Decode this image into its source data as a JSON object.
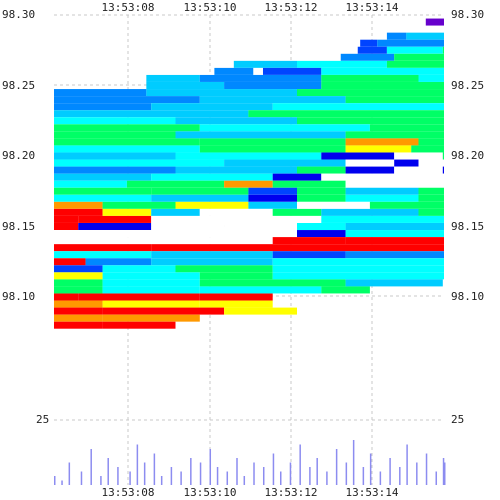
{
  "chart_data": {
    "type": "heatmap",
    "x_ticks": [
      "13:53:08",
      "13:53:10",
      "13:53:12",
      "13:53:14"
    ],
    "y_ticks": [
      "98.30",
      "98.25",
      "98.20",
      "98.15",
      "98.10"
    ],
    "y_lower_label": "25",
    "grid": true,
    "colors": {
      "grid": "#c8c8c8",
      "volume": "#8c8cf0",
      "palette": [
        "#ff0000",
        "#ff9900",
        "#ffff00",
        "#00ff66",
        "#00ffff",
        "#00ccff",
        "#0088ff",
        "#0044ff",
        "#0000ee",
        "#6600cc",
        "#ffffff"
      ]
    },
    "rows": [
      {
        "y": 98.295,
        "segments": [
          [
            13.533,
            13.553,
            9
          ]
        ]
      },
      {
        "y": 98.285,
        "segments": [
          [
            13.517,
            13.525,
            6
          ],
          [
            13.525,
            13.553,
            5
          ]
        ]
      },
      {
        "y": 98.28,
        "segments": [
          [
            13.506,
            13.513,
            7
          ],
          [
            13.513,
            13.553,
            6
          ]
        ]
      },
      {
        "y": 98.275,
        "segments": [
          [
            13.505,
            13.517,
            7
          ],
          [
            13.517,
            13.54,
            4
          ],
          [
            13.54,
            13.553,
            3
          ]
        ]
      },
      {
        "y": 98.27,
        "segments": [
          [
            13.498,
            13.52,
            6
          ],
          [
            13.52,
            13.553,
            3
          ]
        ]
      },
      {
        "y": 98.265,
        "segments": [
          [
            13.454,
            13.48,
            5
          ],
          [
            13.48,
            13.517,
            4
          ],
          [
            13.517,
            13.553,
            3
          ]
        ]
      },
      {
        "y": 98.26,
        "segments": [
          [
            13.446,
            13.462,
            6
          ],
          [
            13.466,
            13.49,
            7
          ],
          [
            13.49,
            13.553,
            4
          ]
        ]
      },
      {
        "y": 98.255,
        "segments": [
          [
            13.418,
            13.44,
            5
          ],
          [
            13.44,
            13.49,
            6
          ],
          [
            13.49,
            13.53,
            3
          ],
          [
            13.53,
            13.553,
            4
          ]
        ]
      },
      {
        "y": 98.25,
        "segments": [
          [
            13.418,
            13.45,
            5
          ],
          [
            13.45,
            13.49,
            6
          ],
          [
            13.49,
            13.553,
            3
          ]
        ]
      },
      {
        "y": 98.245,
        "segments": [
          [
            13.38,
            13.418,
            6
          ],
          [
            13.418,
            13.48,
            5
          ],
          [
            13.48,
            13.553,
            3
          ]
        ]
      },
      {
        "y": 98.24,
        "segments": [
          [
            13.38,
            13.44,
            6
          ],
          [
            13.44,
            13.5,
            5
          ],
          [
            13.5,
            13.553,
            3
          ]
        ]
      },
      {
        "y": 98.235,
        "segments": [
          [
            13.38,
            13.42,
            6
          ],
          [
            13.42,
            13.47,
            5
          ],
          [
            13.47,
            13.553,
            4
          ]
        ]
      },
      {
        "y": 98.23,
        "segments": [
          [
            13.38,
            13.46,
            5
          ],
          [
            13.46,
            13.553,
            3
          ]
        ]
      },
      {
        "y": 98.225,
        "segments": [
          [
            13.38,
            13.43,
            4
          ],
          [
            13.43,
            13.48,
            5
          ],
          [
            13.48,
            13.553,
            3
          ]
        ]
      },
      {
        "y": 98.22,
        "segments": [
          [
            13.38,
            13.44,
            3
          ],
          [
            13.44,
            13.51,
            4
          ],
          [
            13.51,
            13.553,
            3
          ]
        ]
      },
      {
        "y": 98.215,
        "segments": [
          [
            13.38,
            13.43,
            3
          ],
          [
            13.43,
            13.5,
            5
          ],
          [
            13.5,
            13.553,
            3
          ]
        ]
      },
      {
        "y": 98.21,
        "segments": [
          [
            13.38,
            13.44,
            3
          ],
          [
            13.44,
            13.5,
            3
          ],
          [
            13.5,
            13.53,
            1
          ],
          [
            13.53,
            13.553,
            3
          ]
        ]
      },
      {
        "y": 98.205,
        "segments": [
          [
            13.38,
            13.44,
            4
          ],
          [
            13.44,
            13.5,
            3
          ],
          [
            13.5,
            13.527,
            2
          ],
          [
            13.527,
            13.553,
            3
          ]
        ]
      },
      {
        "y": 98.2,
        "segments": [
          [
            13.38,
            13.43,
            5
          ],
          [
            13.43,
            13.49,
            4
          ],
          [
            13.49,
            13.52,
            8
          ],
          [
            13.52,
            13.54,
            10
          ],
          [
            13.54,
            13.553,
            3
          ]
        ]
      },
      {
        "y": 98.195,
        "segments": [
          [
            13.38,
            13.45,
            4
          ],
          [
            13.45,
            13.5,
            5
          ],
          [
            13.5,
            13.52,
            10
          ],
          [
            13.52,
            13.53,
            8
          ],
          [
            13.53,
            13.553,
            10
          ]
        ]
      },
      {
        "y": 98.19,
        "segments": [
          [
            13.38,
            13.43,
            6
          ],
          [
            13.43,
            13.48,
            5
          ],
          [
            13.48,
            13.5,
            3
          ],
          [
            13.5,
            13.52,
            8
          ],
          [
            13.52,
            13.54,
            10
          ],
          [
            13.54,
            13.553,
            8
          ]
        ]
      },
      {
        "y": 98.185,
        "segments": [
          [
            13.38,
            13.42,
            5
          ],
          [
            13.42,
            13.47,
            4
          ],
          [
            13.47,
            13.49,
            8
          ],
          [
            13.49,
            13.553,
            10
          ]
        ]
      },
      {
        "y": 98.18,
        "segments": [
          [
            13.38,
            13.41,
            4
          ],
          [
            13.41,
            13.45,
            3
          ],
          [
            13.45,
            13.47,
            1
          ],
          [
            13.47,
            13.5,
            3
          ],
          [
            13.5,
            13.553,
            10
          ]
        ]
      },
      {
        "y": 98.175,
        "segments": [
          [
            13.38,
            13.42,
            3
          ],
          [
            13.42,
            13.46,
            3
          ],
          [
            13.46,
            13.48,
            7
          ],
          [
            13.48,
            13.5,
            3
          ],
          [
            13.5,
            13.53,
            5
          ],
          [
            13.53,
            13.553,
            3
          ]
        ]
      },
      {
        "y": 98.17,
        "segments": [
          [
            13.38,
            13.42,
            4
          ],
          [
            13.42,
            13.46,
            5
          ],
          [
            13.46,
            13.48,
            8
          ],
          [
            13.48,
            13.5,
            3
          ],
          [
            13.5,
            13.53,
            4
          ],
          [
            13.53,
            13.553,
            3
          ]
        ]
      },
      {
        "y": 98.165,
        "segments": [
          [
            13.38,
            13.4,
            1
          ],
          [
            13.4,
            13.43,
            3
          ],
          [
            13.43,
            13.46,
            2
          ],
          [
            13.46,
            13.48,
            5
          ],
          [
            13.48,
            13.51,
            10
          ],
          [
            13.51,
            13.553,
            3
          ]
        ]
      },
      {
        "y": 98.16,
        "segments": [
          [
            13.38,
            13.4,
            0
          ],
          [
            13.4,
            13.42,
            2
          ],
          [
            13.42,
            13.44,
            5
          ],
          [
            13.44,
            13.47,
            10
          ],
          [
            13.47,
            13.49,
            3
          ],
          [
            13.49,
            13.53,
            5
          ],
          [
            13.53,
            13.553,
            3
          ]
        ]
      },
      {
        "y": 98.155,
        "segments": [
          [
            13.38,
            13.39,
            0
          ],
          [
            13.39,
            13.42,
            0
          ],
          [
            13.42,
            13.44,
            10
          ],
          [
            13.44,
            13.47,
            10
          ],
          [
            13.47,
            13.49,
            10
          ],
          [
            13.49,
            13.553,
            4
          ]
        ]
      },
      {
        "y": 98.15,
        "segments": [
          [
            13.38,
            13.39,
            0
          ],
          [
            13.39,
            13.42,
            8
          ],
          [
            13.42,
            13.45,
            10
          ],
          [
            13.45,
            13.48,
            10
          ],
          [
            13.48,
            13.5,
            4
          ],
          [
            13.5,
            13.553,
            5
          ]
        ]
      },
      {
        "y": 98.145,
        "segments": [
          [
            13.38,
            13.42,
            10
          ],
          [
            13.42,
            13.45,
            10
          ],
          [
            13.45,
            13.48,
            10
          ],
          [
            13.48,
            13.5,
            8
          ],
          [
            13.5,
            13.553,
            4
          ]
        ]
      },
      {
        "y": 98.14,
        "segments": [
          [
            13.38,
            13.4,
            10
          ],
          [
            13.4,
            13.44,
            10
          ],
          [
            13.44,
            13.47,
            10
          ],
          [
            13.47,
            13.5,
            0
          ],
          [
            13.5,
            13.553,
            0
          ]
        ]
      },
      {
        "y": 98.135,
        "segments": [
          [
            13.38,
            13.42,
            0
          ],
          [
            13.42,
            13.553,
            0
          ]
        ]
      },
      {
        "y": 98.13,
        "segments": [
          [
            13.38,
            13.42,
            4
          ],
          [
            13.42,
            13.47,
            5
          ],
          [
            13.47,
            13.5,
            7
          ],
          [
            13.5,
            13.553,
            6
          ]
        ]
      },
      {
        "y": 98.125,
        "segments": [
          [
            13.38,
            13.393,
            0
          ],
          [
            13.393,
            13.42,
            6
          ],
          [
            13.42,
            13.47,
            5
          ],
          [
            13.47,
            13.553,
            4
          ]
        ]
      },
      {
        "y": 98.12,
        "segments": [
          [
            13.38,
            13.4,
            7
          ],
          [
            13.4,
            13.43,
            4
          ],
          [
            13.43,
            13.47,
            3
          ],
          [
            13.47,
            13.553,
            4
          ]
        ]
      },
      {
        "y": 98.115,
        "segments": [
          [
            13.38,
            13.4,
            2
          ],
          [
            13.4,
            13.44,
            4
          ],
          [
            13.44,
            13.47,
            3
          ],
          [
            13.47,
            13.553,
            4
          ]
        ]
      },
      {
        "y": 98.11,
        "segments": [
          [
            13.38,
            13.4,
            3
          ],
          [
            13.4,
            13.44,
            4
          ],
          [
            13.44,
            13.5,
            3
          ],
          [
            13.5,
            13.54,
            5
          ]
        ]
      },
      {
        "y": 98.105,
        "segments": [
          [
            13.38,
            13.4,
            3
          ],
          [
            13.4,
            13.44,
            4
          ],
          [
            13.44,
            13.49,
            4
          ],
          [
            13.49,
            13.51,
            3
          ]
        ]
      },
      {
        "y": 98.1,
        "segments": [
          [
            13.38,
            13.39,
            0
          ],
          [
            13.39,
            13.44,
            0
          ],
          [
            13.44,
            13.47,
            0
          ]
        ]
      },
      {
        "y": 98.095,
        "segments": [
          [
            13.38,
            13.4,
            1
          ],
          [
            13.4,
            13.44,
            2
          ],
          [
            13.44,
            13.47,
            2
          ]
        ]
      },
      {
        "y": 98.09,
        "segments": [
          [
            13.38,
            13.4,
            0
          ],
          [
            13.4,
            13.45,
            0
          ],
          [
            13.45,
            13.48,
            2
          ]
        ]
      },
      {
        "y": 98.085,
        "segments": [
          [
            13.38,
            13.4,
            1
          ],
          [
            13.4,
            13.44,
            1
          ]
        ]
      },
      {
        "y": 98.08,
        "segments": [
          [
            13.38,
            13.4,
            0
          ],
          [
            13.4,
            13.43,
            0
          ]
        ]
      }
    ],
    "volume": [
      [
        13.38,
        2
      ],
      [
        13.383,
        1
      ],
      [
        13.386,
        5
      ],
      [
        13.391,
        3
      ],
      [
        13.395,
        8
      ],
      [
        13.399,
        2
      ],
      [
        13.402,
        6
      ],
      [
        13.406,
        4
      ],
      [
        13.411,
        3
      ],
      [
        13.414,
        9
      ],
      [
        13.417,
        5
      ],
      [
        13.421,
        7
      ],
      [
        13.424,
        2
      ],
      [
        13.428,
        4
      ],
      [
        13.432,
        3
      ],
      [
        13.436,
        6
      ],
      [
        13.44,
        5
      ],
      [
        13.444,
        8
      ],
      [
        13.447,
        4
      ],
      [
        13.451,
        3
      ],
      [
        13.455,
        6
      ],
      [
        13.458,
        2
      ],
      [
        13.462,
        5
      ],
      [
        13.466,
        4
      ],
      [
        13.47,
        7
      ],
      [
        13.473,
        3
      ],
      [
        13.477,
        5
      ],
      [
        13.481,
        9
      ],
      [
        13.485,
        4
      ],
      [
        13.488,
        6
      ],
      [
        13.492,
        3
      ],
      [
        13.496,
        8
      ],
      [
        13.5,
        5
      ],
      [
        13.503,
        10
      ],
      [
        13.507,
        4
      ],
      [
        13.51,
        7
      ],
      [
        13.514,
        3
      ],
      [
        13.518,
        6
      ],
      [
        13.522,
        4
      ],
      [
        13.525,
        9
      ],
      [
        13.529,
        5
      ],
      [
        13.533,
        7
      ],
      [
        13.537,
        3
      ],
      [
        13.54,
        6
      ],
      [
        13.544,
        4
      ],
      [
        13.548,
        5
      ],
      [
        13.551,
        2
      ]
    ]
  }
}
